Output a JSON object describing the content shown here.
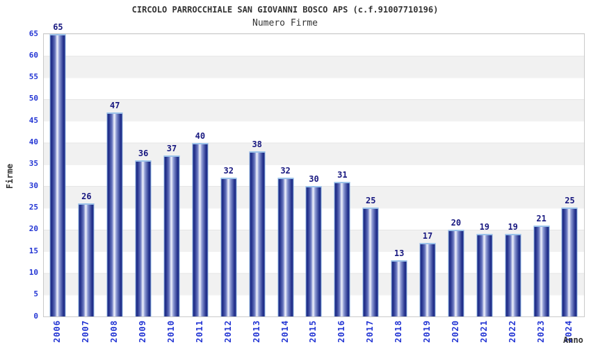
{
  "header": {
    "title": "CIRCOLO PARROCCHIALE SAN GIOVANNI BOSCO APS (c.f.91007710196)",
    "subtitle": "Numero Firme"
  },
  "y_axis": {
    "label": "Firme",
    "ticks": [
      0,
      5,
      10,
      15,
      20,
      25,
      30,
      35,
      40,
      45,
      50,
      55,
      60,
      65
    ]
  },
  "x_axis": {
    "label": "Anno"
  },
  "chart_data": {
    "type": "bar",
    "title": "Numero Firme",
    "xlabel": "Anno",
    "ylabel": "Firme",
    "ylim": [
      0,
      65
    ],
    "grid": "horizontal-bands-every-5",
    "legend": "none",
    "categories": [
      "2006",
      "2007",
      "2008",
      "2009",
      "2010",
      "2011",
      "2012",
      "2013",
      "2014",
      "2015",
      "2016",
      "2017",
      "2018",
      "2019",
      "2020",
      "2021",
      "2022",
      "2023",
      "2024"
    ],
    "values": [
      65,
      26,
      47,
      36,
      37,
      40,
      32,
      38,
      32,
      30,
      31,
      25,
      13,
      17,
      20,
      19,
      19,
      21,
      25
    ]
  },
  "colors": {
    "bar_dark": "#1c2a85",
    "bar_highlight": "#f2f4fd",
    "bar_border": "#8ab0e0",
    "value_label": "#181880",
    "axis_tick_text": "#2436d4",
    "title_text": "#333333",
    "band_gray": "#f1f1f1",
    "plot_border": "#c9c9c9"
  }
}
